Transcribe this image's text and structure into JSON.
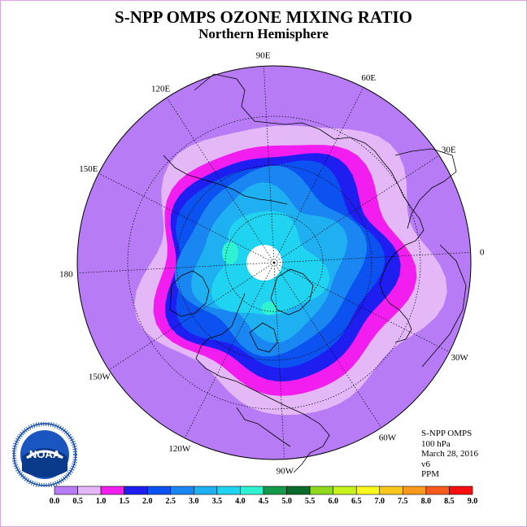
{
  "title": "S-NPP OMPS OZONE MIXING RATIO",
  "subtitle": "Northern Hemisphere",
  "longitude_labels": [
    {
      "id": "90E",
      "text": "90E"
    },
    {
      "id": "60E",
      "text": "60E"
    },
    {
      "id": "30E",
      "text": "30E"
    },
    {
      "id": "0",
      "text": "0"
    },
    {
      "id": "30W",
      "text": "30W"
    },
    {
      "id": "60W",
      "text": "60W"
    },
    {
      "id": "90W",
      "text": "90W"
    },
    {
      "id": "120W",
      "text": "120W"
    },
    {
      "id": "150W",
      "text": "150W"
    },
    {
      "id": "180",
      "text": "180"
    },
    {
      "id": "150E",
      "text": "150E"
    },
    {
      "id": "120E",
      "text": "120E"
    }
  ],
  "info": {
    "instrument": "S-NPP OMPS",
    "level": "100 hPa",
    "date": "March 28, 2016",
    "version": "v6",
    "units": "PPM"
  },
  "logo": {
    "text": "NOAA",
    "icon": "noaa-logo-icon"
  },
  "colorbar": {
    "ticks": [
      "0.0",
      "0.5",
      "1.0",
      "1.5",
      "2.0",
      "2.5",
      "3.0",
      "3.5",
      "4.0",
      "4.5",
      "5.0",
      "5.5",
      "6.0",
      "6.5",
      "7.0",
      "7.5",
      "8.0",
      "8.5",
      "9.0"
    ],
    "colors": [
      "#b77cf5",
      "#e4b8f7",
      "#f21ef0",
      "#1e1ef0",
      "#0b52f0",
      "#1a86f2",
      "#1fb0f2",
      "#20d3f0",
      "#2ff2d0",
      "#129a4a",
      "#0a6a2a",
      "#8ed81e",
      "#c7f21e",
      "#f8f81e",
      "#f8c81e",
      "#f89a1e",
      "#f85a1e",
      "#f80e0e",
      "#8a5a3a"
    ]
  },
  "field_colors": {
    "background": "#b77cf5",
    "band_0_5": "#e4b8f7",
    "band_1_0": "#f21ef0",
    "band_1_5": "#1e1ef0",
    "band_2_0": "#0b52f0",
    "band_2_5": "#1a86f2",
    "band_3_0": "#1fb0f2",
    "band_3_5": "#20d3f0",
    "band_4_0": "#2ff2d0",
    "pole_missing": "#ffffff"
  }
}
